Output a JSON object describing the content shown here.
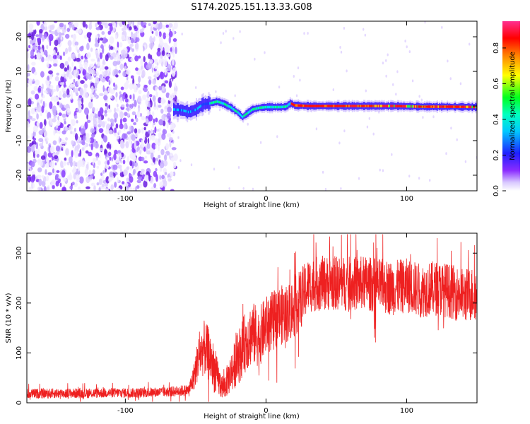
{
  "title": "S174.2025.151.13.33.G08",
  "chart_data": [
    {
      "type": "heatmap",
      "xlabel": "Height of straight line (km)",
      "ylabel": "Frequency (Hz)",
      "xlim": [
        -170,
        150
      ],
      "ylim": [
        -24.5,
        24.5
      ],
      "x_ticks": [
        "-100",
        "0",
        "100"
      ],
      "x_tick_values": [
        -100,
        0,
        100
      ],
      "y_ticks": [
        "20",
        "10",
        "0",
        "-10",
        "-20"
      ],
      "y_tick_values": [
        20,
        10,
        0,
        -10,
        -20
      ],
      "colorbar": {
        "label": "Normalized spectral amplitude",
        "range": [
          0.0,
          0.95
        ],
        "ticks": [
          "0.0",
          "0.2",
          "0.4",
          "0.6",
          "0.8"
        ],
        "tick_values": [
          0.0,
          0.2,
          0.4,
          0.6,
          0.8
        ],
        "colormap": [
          "#ffffff",
          "#c9b6ff",
          "#7a1fff",
          "#2020ff",
          "#00ffff",
          "#00ff40",
          "#ffff00",
          "#ff8800",
          "#ff0000",
          "#ff2080"
        ]
      },
      "noise_region_x": [
        -170,
        -64
      ],
      "signal_start_x": -66,
      "signal_track": {
        "x": [
          -66,
          -60,
          -55,
          -50,
          -45,
          -40,
          -35,
          -30,
          -25,
          -20,
          -17,
          -15,
          -10,
          -5,
          0,
          5,
          10,
          14,
          17,
          20,
          30,
          50,
          70,
          90,
          110,
          130,
          150
        ],
        "freq": [
          -1.0,
          -1.2,
          -1.8,
          -1.0,
          0.5,
          0.8,
          1.3,
          0.6,
          -0.5,
          -2.0,
          -3.2,
          -2.5,
          -1.0,
          -0.5,
          -0.3,
          -0.3,
          -0.3,
          -0.2,
          0.8,
          0.2,
          0.0,
          0.0,
          0.0,
          0.0,
          -0.2,
          -0.2,
          -0.3
        ]
      }
    },
    {
      "type": "line",
      "xlabel": "Height of straight line (km)",
      "ylabel": "SNR (10 * v/v)",
      "xlim": [
        -170,
        150
      ],
      "ylim": [
        0,
        340
      ],
      "x_ticks": [
        "-100",
        "0",
        "100"
      ],
      "x_tick_values": [
        -100,
        0,
        100
      ],
      "y_ticks": [
        "300",
        "200",
        "100",
        "0"
      ],
      "y_tick_values": [
        300,
        200,
        100,
        0
      ],
      "color": "#ee2020",
      "series": [
        {
          "name": "",
          "x": [
            -170,
            -150,
            -130,
            -110,
            -90,
            -70,
            -55,
            -52,
            -48,
            -44,
            -40,
            -36,
            -33,
            -30,
            -25,
            -20,
            -15,
            -10,
            -5,
            0,
            5,
            10,
            15,
            20,
            25,
            30,
            40,
            50,
            60,
            70,
            80,
            90,
            100,
            110,
            120,
            130,
            140,
            150
          ],
          "values": [
            18,
            19,
            19,
            20,
            20,
            22,
            25,
            45,
            90,
            110,
            95,
            60,
            40,
            30,
            60,
            90,
            120,
            140,
            130,
            155,
            165,
            175,
            180,
            190,
            210,
            235,
            240,
            240,
            238,
            240,
            235,
            230,
            235,
            225,
            230,
            225,
            215,
            220
          ],
          "spread": [
            10,
            10,
            10,
            10,
            10,
            10,
            12,
            25,
            45,
            55,
            55,
            45,
            30,
            25,
            40,
            55,
            60,
            65,
            60,
            60,
            60,
            60,
            60,
            60,
            60,
            55,
            55,
            55,
            55,
            55,
            55,
            55,
            55,
            55,
            55,
            55,
            55,
            55
          ]
        }
      ]
    }
  ]
}
